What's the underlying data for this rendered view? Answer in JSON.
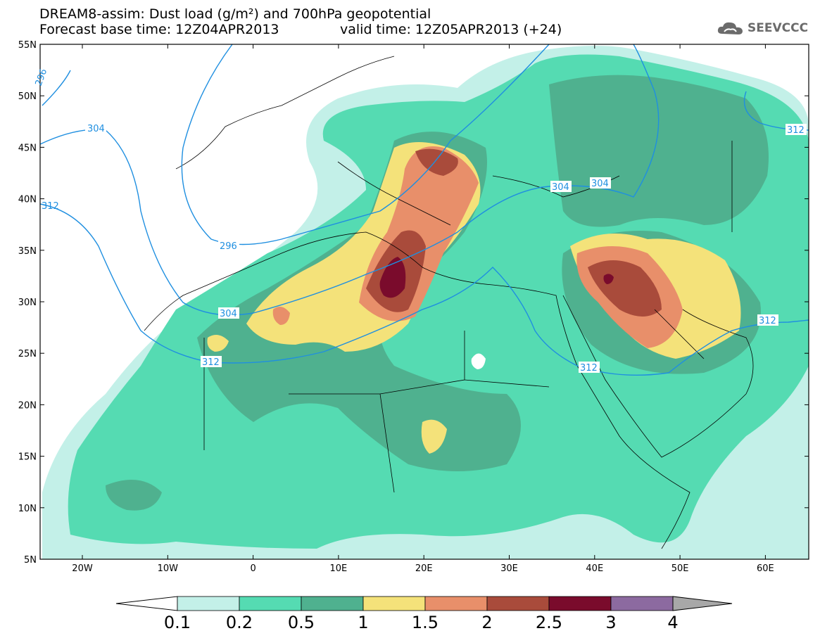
{
  "header": {
    "title_line1": "DREAM8-assim: Dust load (g/m²) and 700hPa geopotential",
    "title_line2": "Forecast base time: 12Z04APR2013",
    "valid_time": "valid time: 12Z05APR2013 (+24)",
    "logo_text": "SEEVCCC",
    "logo_icon": "cloud-icon"
  },
  "map": {
    "lat_labels": [
      "55N",
      "50N",
      "45N",
      "40N",
      "35N",
      "30N",
      "25N",
      "20N",
      "15N",
      "10N",
      "5N"
    ],
    "lon_labels": [
      "20W",
      "10W",
      "0",
      "10E",
      "20E",
      "30E",
      "40E",
      "50E",
      "60E"
    ],
    "contour_labels": [
      "296",
      "304",
      "312",
      "296",
      "304",
      "312",
      "304",
      "304",
      "312",
      "312",
      "312"
    ]
  },
  "colorbar": {
    "ticks": [
      "0.1",
      "0.2",
      "0.5",
      "1",
      "1.5",
      "2",
      "2.5",
      "3",
      "4"
    ],
    "colors": [
      "#c3f0e8",
      "#55dbb2",
      "#4fb18f",
      "#f4e27a",
      "#e88f6a",
      "#a94b3b",
      "#7a0b2c",
      "#8c6aa0"
    ],
    "under_color": "#ffffff",
    "over_color": "#a8a8a8"
  },
  "colors": {
    "ocean": "#ffffff",
    "contour_line": "#1f8fe0",
    "border": "#000000"
  }
}
